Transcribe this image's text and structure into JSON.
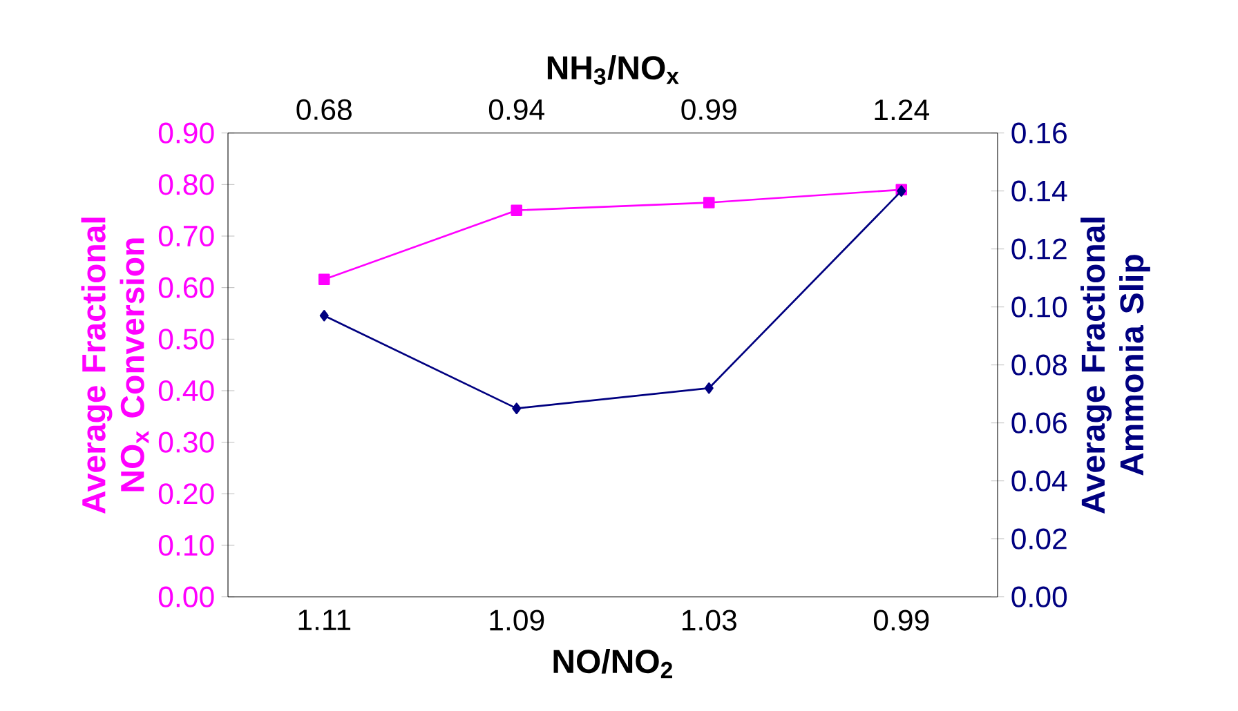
{
  "chart_data": {
    "type": "line",
    "xlabel": "NO/NO$_{2}$",
    "x2label": "NH$_{3}$/NO$_{x}$",
    "ylabel": "Average Fractional NO$_{x}$ Conversion",
    "y2label": "Average Fractional Ammonia Slip",
    "categories": [
      "1.11",
      "1.09",
      "1.03",
      "0.99"
    ],
    "annotations": [
      "0.68",
      "0.94",
      "0.99",
      "1.24"
    ],
    "ylim": [
      0,
      0.9
    ],
    "yticks": [
      {
        "value": 0,
        "label": "0.00"
      },
      {
        "value": 0.1,
        "label": "0.10"
      },
      {
        "value": 0.2,
        "label": "0.20"
      },
      {
        "value": 0.3,
        "label": "0.30"
      },
      {
        "value": 0.4,
        "label": "0.40"
      },
      {
        "value": 0.5,
        "label": "0.50"
      },
      {
        "value": 0.6,
        "label": "0.60"
      },
      {
        "value": 0.7,
        "label": "0.70"
      },
      {
        "value": 0.8,
        "label": "0.80"
      },
      {
        "value": 0.9,
        "label": "0.90"
      }
    ],
    "y2lim": [
      0,
      0.16
    ],
    "y2ticks": [
      {
        "value": 0,
        "label": "0.00"
      },
      {
        "value": 0.02,
        "label": "0.02"
      },
      {
        "value": 0.04,
        "label": "0.04"
      },
      {
        "value": 0.06,
        "label": "0.06"
      },
      {
        "value": 0.08,
        "label": "0.08"
      },
      {
        "value": 0.1,
        "label": "0.10"
      },
      {
        "value": 0.12,
        "label": "0.12"
      },
      {
        "value": 0.14,
        "label": "0.14"
      },
      {
        "value": 0.16,
        "label": "0.16"
      }
    ],
    "grid": false,
    "series": [
      {
        "color": "#ff00ff",
        "marker": "square",
        "values": [
          0.616,
          0.75,
          0.765,
          0.79
        ]
      },
      {
        "color": "#000080",
        "marker": "diamond",
        "axis": "y2",
        "values": [
          0.097,
          0.065,
          0.072,
          0.14
        ]
      }
    ]
  }
}
